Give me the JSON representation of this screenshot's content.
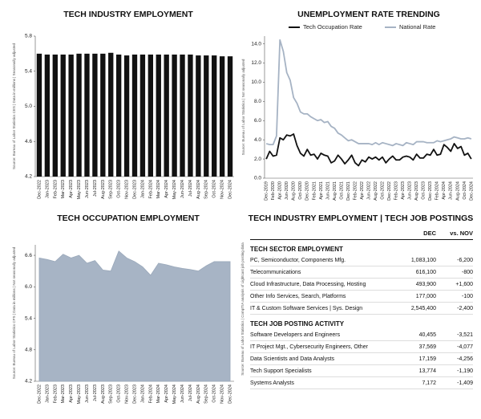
{
  "chart_data": [
    {
      "type": "bar",
      "title": "TECH INDUSTRY EMPLOYMENT",
      "y_label": "Source: Bureau of Labor Statistics CES | Data in millions | Seasonally adjusted",
      "categories": [
        "Dec-2022",
        "Jan-2023",
        "Feb-2023",
        "Mar-2023",
        "Apr-2023",
        "May-2023",
        "Jun-2023",
        "Jul-2023",
        "Aug-2023",
        "Sep-2023",
        "Oct-2023",
        "Nov-2023",
        "Dec-2023",
        "Jan-2024",
        "Feb-2024",
        "Mar-2024",
        "Apr-2024",
        "May-2024",
        "Jun-2024",
        "Jul-2024",
        "Aug-2024",
        "Sep-2024",
        "Oct-2024",
        "Nov-2024",
        "Dec-2024"
      ],
      "values": [
        5.6,
        5.59,
        5.59,
        5.59,
        5.59,
        5.6,
        5.6,
        5.6,
        5.6,
        5.61,
        5.59,
        5.58,
        5.59,
        5.59,
        5.59,
        5.59,
        5.59,
        5.59,
        5.59,
        5.59,
        5.58,
        5.58,
        5.58,
        5.57,
        5.57
      ],
      "color": "#111111",
      "ylim": [
        4.2,
        5.8
      ],
      "yticks": [
        4.2,
        4.6,
        {
          "value": 5,
          "label": "5.0"
        },
        5.4,
        5.8
      ]
    },
    {
      "type": "line",
      "title": "UNEMPLOYMENT RATE TRENDING",
      "y_label": "Source: Bureau of Labor Statistics | Not seasonally adjusted",
      "categories": [
        "Dec-2019",
        null,
        "Feb-2020",
        null,
        "Apr-2020",
        null,
        "Jun-2020",
        null,
        "Aug-2020",
        null,
        "Oct-2020",
        null,
        "Dec-2020",
        null,
        "Feb-2021",
        null,
        "Apr-2021",
        null,
        "Jun-2021",
        null,
        "Aug-2021",
        null,
        "Oct-2021",
        null,
        "Dec-2021",
        null,
        "Feb-2022",
        null,
        "Apr-2022",
        null,
        "Jun-2022",
        null,
        "Aug-2022",
        null,
        "Oct-2022",
        null,
        "Dec-2022",
        null,
        "Feb-2023",
        null,
        "Apr-2023",
        null,
        "Jun-2023",
        null,
        "Aug-2023",
        null,
        "Oct-2023",
        null,
        "Dec-2023",
        null,
        "Feb-2024",
        null,
        "Apr-2024",
        null,
        "Jun-2024",
        null,
        "Aug-2024",
        null,
        "Oct-2024",
        null,
        "Dec-2024"
      ],
      "series": [
        {
          "name": "Tech Occupation Rate",
          "color": "#111111",
          "values": [
            2.0,
            2.8,
            2.3,
            2.4,
            4.2,
            4.0,
            4.5,
            4.4,
            4.6,
            3.4,
            2.6,
            2.3,
            3.0,
            2.4,
            2.5,
            2.0,
            2.6,
            2.4,
            2.3,
            1.6,
            1.8,
            2.4,
            2.0,
            1.5,
            1.9,
            2.4,
            1.6,
            1.3,
            1.9,
            1.7,
            2.2,
            2.0,
            2.2,
            1.9,
            2.2,
            1.6,
            2.0,
            2.3,
            1.9,
            1.9,
            2.2,
            2.3,
            2.2,
            1.9,
            2.5,
            2.1,
            2.1,
            2.5,
            2.4,
            3.0,
            2.4,
            2.5,
            3.5,
            3.2,
            2.8,
            3.6,
            3.1,
            3.3,
            2.4,
            2.6,
            2.0
          ]
        },
        {
          "name": "National Rate",
          "color": "#a6b3c4",
          "values": [
            3.6,
            3.5,
            3.5,
            4.4,
            14.4,
            13.2,
            11.0,
            10.2,
            8.4,
            7.8,
            6.9,
            6.7,
            6.7,
            6.4,
            6.2,
            6.0,
            6.1,
            5.8,
            5.9,
            5.4,
            5.2,
            4.7,
            4.5,
            4.2,
            3.9,
            4.0,
            3.8,
            3.6,
            3.6,
            3.6,
            3.6,
            3.5,
            3.7,
            3.5,
            3.7,
            3.6,
            3.5,
            3.4,
            3.6,
            3.5,
            3.4,
            3.7,
            3.6,
            3.5,
            3.8,
            3.8,
            3.8,
            3.7,
            3.7,
            3.7,
            3.9,
            3.8,
            3.9,
            4.0,
            4.1,
            4.3,
            4.2,
            4.1,
            4.1,
            4.2,
            4.1
          ]
        }
      ],
      "ylim": [
        0,
        14.8
      ],
      "yticks": [
        {
          "value": 0,
          "label": "0.0"
        },
        {
          "value": 2,
          "label": "2.0"
        },
        {
          "value": 4,
          "label": "4.0"
        },
        {
          "value": 6,
          "label": "6.0"
        },
        {
          "value": 8,
          "label": "8.0"
        },
        {
          "value": 10,
          "label": "10.0"
        },
        {
          "value": 12,
          "label": "12.0"
        },
        {
          "value": 14,
          "label": "14.0"
        }
      ]
    },
    {
      "type": "area",
      "title": "TECH OCCUPATION EMPLOYMENT",
      "y_label": "Source: Bureau of Labor Statistics CPS | Data in millions | Not seasonally adjusted",
      "categories": [
        "Dec-2022",
        "Jan-2023",
        "Feb-2023",
        "Mar-2023",
        "Apr-2023",
        "May-2023",
        "Jun-2023",
        "Jul-2023",
        "Aug-2023",
        "Sep-2023",
        "Oct-2023",
        "Nov-2023",
        "Dec-2023",
        "Jan-2024",
        "Feb-2024",
        "Mar-2024",
        "Apr-2024",
        "May-2024",
        "Jun-2024",
        "Jul-2024",
        "Aug-2024",
        "Sep-2024",
        "Oct-2024",
        "Nov-2024",
        "Dec-2024"
      ],
      "values": [
        6.55,
        6.52,
        6.48,
        6.62,
        6.55,
        6.6,
        6.45,
        6.5,
        6.32,
        6.3,
        6.68,
        6.55,
        6.48,
        6.38,
        6.22,
        6.45,
        6.42,
        6.38,
        6.35,
        6.33,
        6.3,
        6.4,
        6.48,
        6.48,
        6.48
      ],
      "color": "#a7b4c5",
      "ylim": [
        4.2,
        6.8
      ],
      "yticks": [
        4.2,
        4.8,
        5.4,
        {
          "value": 6,
          "label": "6.0"
        },
        6.6
      ]
    }
  ],
  "table": {
    "title": "TECH INDUSTRY EMPLOYMENT | TECH JOB POSTINGS",
    "columns": [
      "DEC",
      "vs. NOV"
    ],
    "source": "Source: Bureau of Labor Statistics | CompTIA analysis of Lightcast job posting data",
    "sections": [
      {
        "heading": "TECH SECTOR EMPLOYMENT",
        "rows": [
          [
            "PC, Semiconductor, Components Mfg.",
            "1,083,100",
            "-6,200"
          ],
          [
            "Telecommunications",
            "616,100",
            "-800"
          ],
          [
            "Cloud Infrastructure, Data Processing, Hosting",
            "493,900",
            "+1,600"
          ],
          [
            "Other Info Services, Search, Platforms",
            "177,000",
            "-100"
          ],
          [
            "IT & Custom Software Services | Sys. Design",
            "2,545,400",
            "-2,400"
          ]
        ]
      },
      {
        "heading": "TECH JOB POSTING ACTIVITY",
        "rows": [
          [
            "Software Developers and Engineers",
            "40,455",
            "-3,521"
          ],
          [
            "IT Project Mgt., Cybersecurity Engineers, Other",
            "37,569",
            "-4,077"
          ],
          [
            "Data Scientists and Data Analysts",
            "17,159",
            "-4,256"
          ],
          [
            "Tech Support Specialists",
            "13,774",
            "-1,190"
          ],
          [
            "Systems Analysts",
            "7,172",
            "-1,409"
          ]
        ]
      }
    ]
  }
}
